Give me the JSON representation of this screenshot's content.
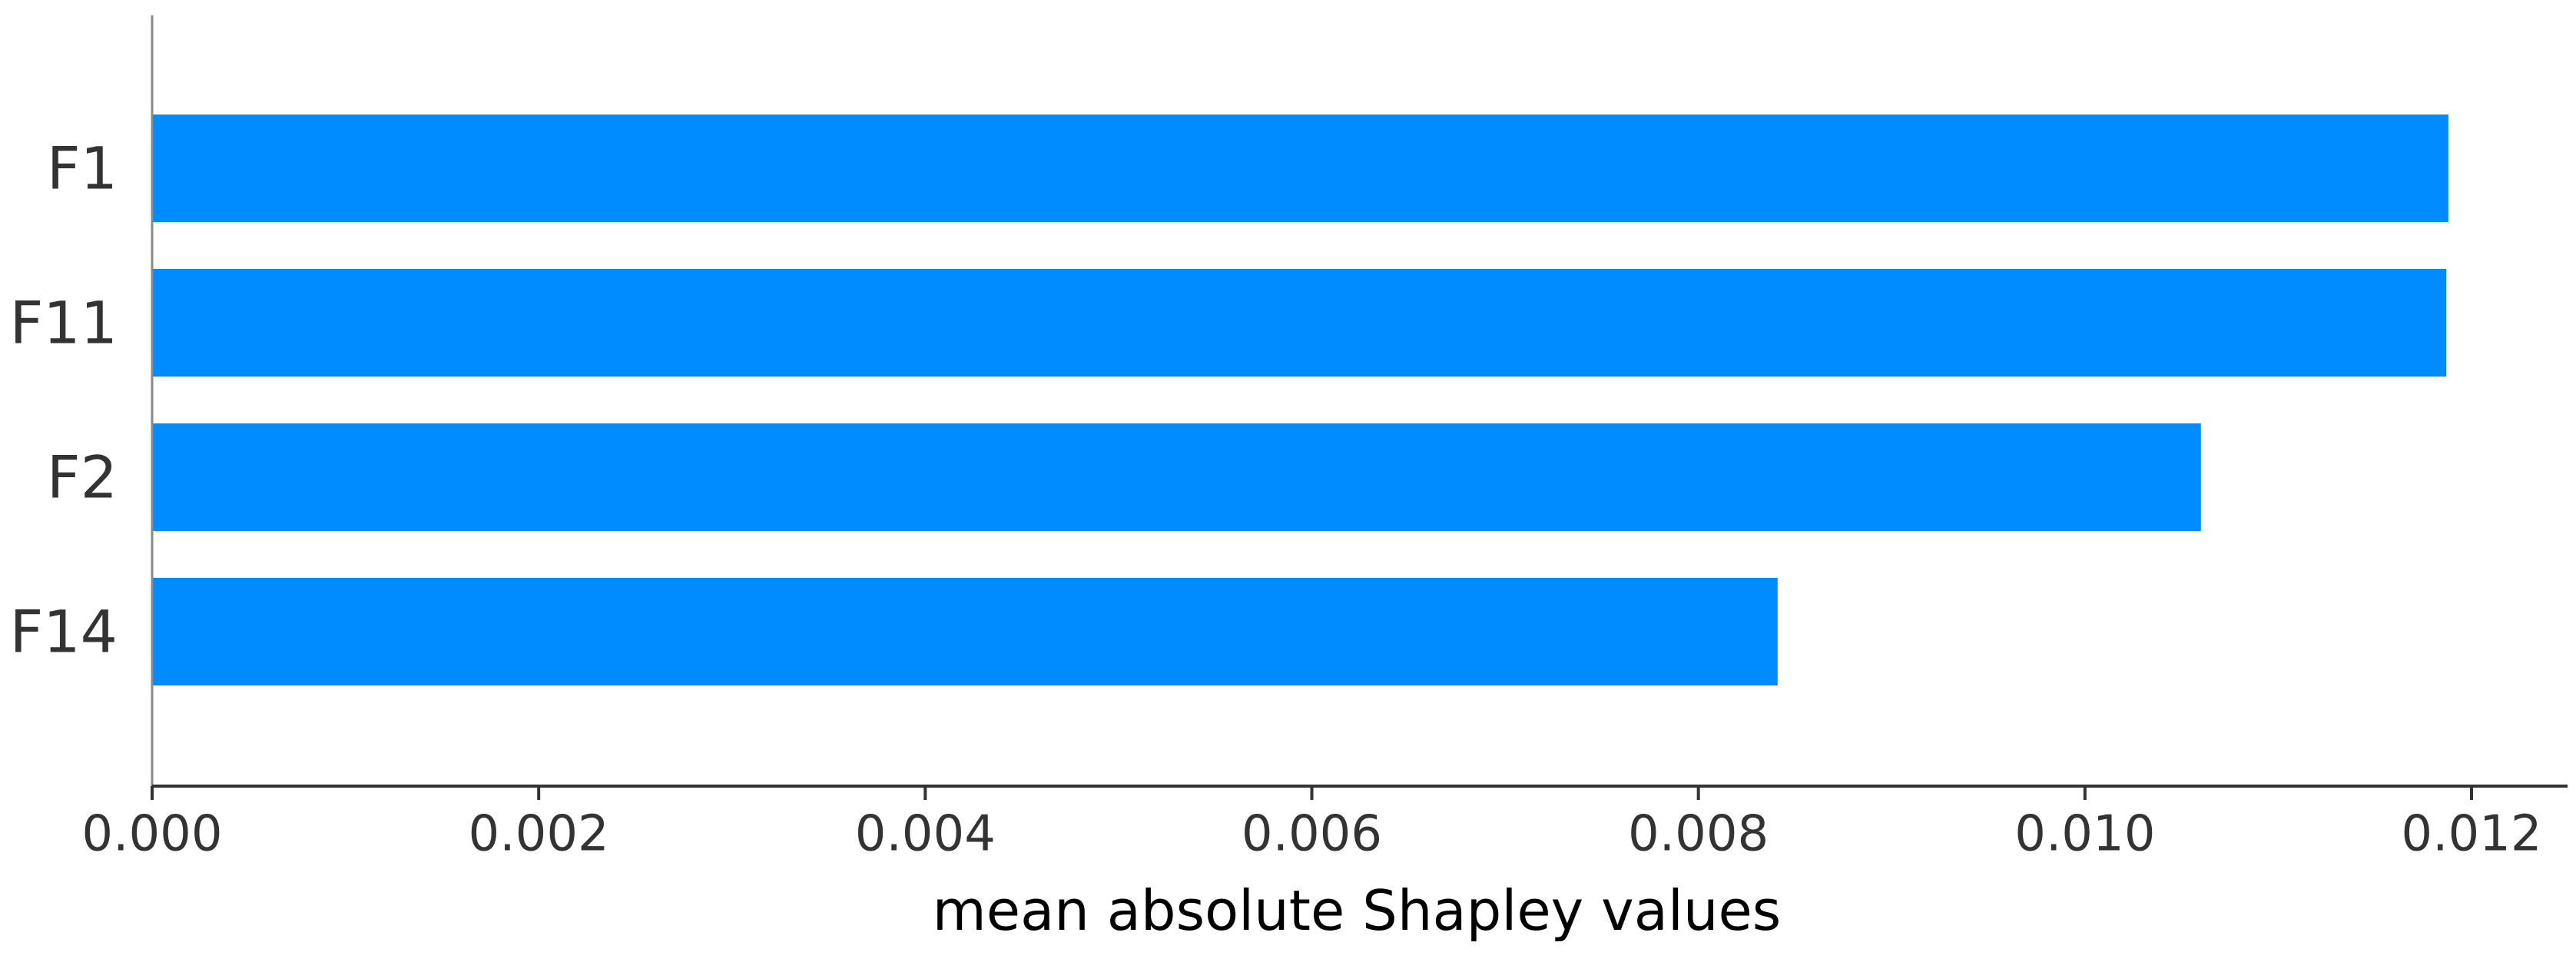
{
  "chart_data": {
    "type": "bar",
    "orientation": "horizontal",
    "categories": [
      "F1",
      "F11",
      "F2",
      "F14"
    ],
    "values": [
      0.01188,
      0.01187,
      0.0106,
      0.00841
    ],
    "xlabel": "mean absolute Shapley values",
    "ylabel": "",
    "xlim": [
      0,
      0.0125
    ],
    "xticks": [
      "0.000",
      "0.002",
      "0.004",
      "0.006",
      "0.008",
      "0.010",
      "0.012"
    ],
    "grid": false,
    "legend": "none",
    "colors": {
      "bar": "#008bff",
      "axis": "#333333",
      "text": "#333333",
      "title": "#000000"
    }
  }
}
